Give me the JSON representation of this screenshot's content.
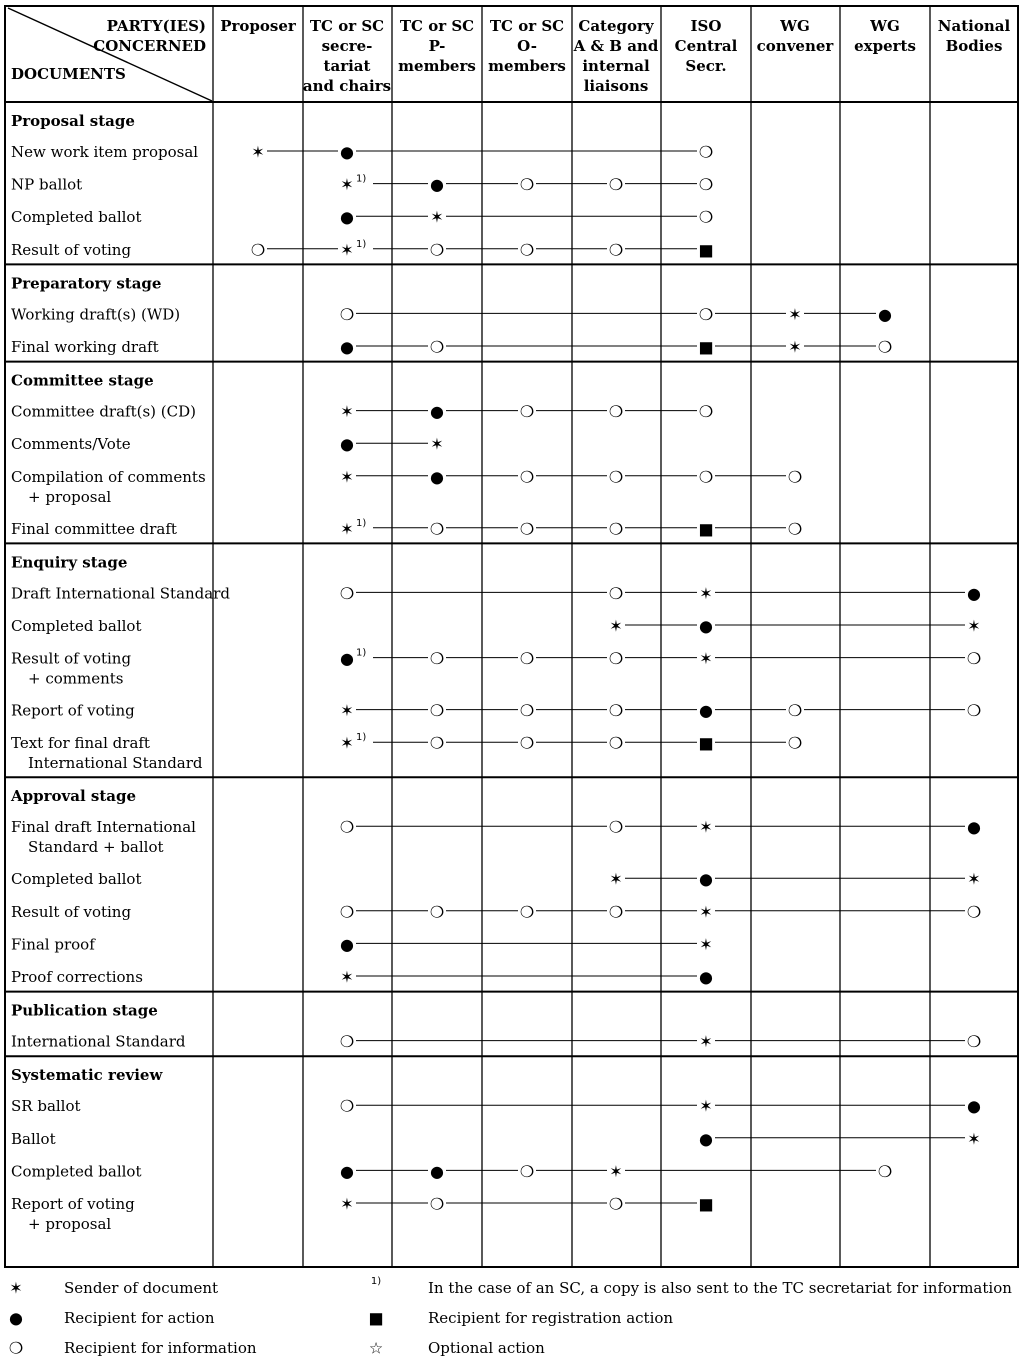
{
  "header": {
    "corner_top": [
      "PARTY(IES)",
      "CONCERNED"
    ],
    "corner_bottom": "DOCUMENTS",
    "columns": [
      [
        "Proposer"
      ],
      [
        "TC or SC",
        "secre-",
        "tariat",
        "and chairs"
      ],
      [
        "TC or SC",
        "P-",
        "members"
      ],
      [
        "TC or SC",
        "O-",
        "members"
      ],
      [
        "Category",
        "A & B and",
        "internal",
        "liaisons"
      ],
      [
        "ISO",
        "Central",
        "Secr."
      ],
      [
        "WG",
        "convener"
      ],
      [
        "WG",
        "experts"
      ],
      [
        "National",
        "Bodies"
      ]
    ]
  },
  "symbols": {
    "S": "✶",
    "A": "●",
    "I": "❍",
    "R": "■",
    "O": "☆"
  },
  "footnote_mark": "1)",
  "sections": [
    {
      "title": "Proposal stage",
      "rows": [
        {
          "label": [
            "New work item proposal"
          ],
          "marks": [
            "S",
            "A",
            "",
            "",
            "",
            "I",
            "",
            "",
            ""
          ],
          "fn": []
        },
        {
          "label": [
            "NP ballot"
          ],
          "marks": [
            "",
            "S",
            "A",
            "I",
            "I",
            "I",
            "",
            "",
            ""
          ],
          "fn": [
            1
          ]
        },
        {
          "label": [
            "Completed ballot"
          ],
          "marks": [
            "",
            "A",
            "S",
            "",
            "",
            "I",
            "",
            "",
            ""
          ],
          "fn": []
        },
        {
          "label": [
            "Result of voting"
          ],
          "marks": [
            "I",
            "S",
            "I",
            "I",
            "I",
            "R",
            "",
            "",
            ""
          ],
          "fn": [
            1
          ]
        }
      ]
    },
    {
      "title": "Preparatory stage",
      "rows": [
        {
          "label": [
            "Working draft(s) (WD)"
          ],
          "marks": [
            "",
            "I",
            "",
            "",
            "",
            "I",
            "S",
            "A",
            ""
          ],
          "fn": []
        },
        {
          "label": [
            "Final working draft"
          ],
          "marks": [
            "",
            "A",
            "I",
            "",
            "",
            "R",
            "S",
            "I",
            ""
          ],
          "fn": []
        }
      ]
    },
    {
      "title": "Committee stage",
      "rows": [
        {
          "label": [
            "Committee draft(s) (CD)"
          ],
          "marks": [
            "",
            "S",
            "A",
            "I",
            "I",
            "I",
            "",
            "",
            ""
          ],
          "fn": []
        },
        {
          "label": [
            "Comments/Vote"
          ],
          "marks": [
            "",
            "A",
            "S",
            "",
            "",
            "",
            "",
            "",
            ""
          ],
          "fn": []
        },
        {
          "label": [
            "Compilation of comments",
            "+ proposal"
          ],
          "marks": [
            "",
            "S",
            "A",
            "I",
            "I",
            "I",
            "I",
            "",
            ""
          ],
          "fn": []
        },
        {
          "label": [
            "Final committee draft"
          ],
          "marks": [
            "",
            "S",
            "I",
            "I",
            "I",
            "R",
            "I",
            "",
            ""
          ],
          "fn": [
            1
          ]
        }
      ]
    },
    {
      "title": "Enquiry stage",
      "rows": [
        {
          "label": [
            "Draft International Standard"
          ],
          "marks": [
            "",
            "I",
            "",
            "",
            "I",
            "S",
            "",
            "",
            "A"
          ],
          "fn": []
        },
        {
          "label": [
            "Completed ballot"
          ],
          "marks": [
            "",
            "",
            "",
            "",
            "S",
            "A",
            "",
            "",
            "S"
          ],
          "fn": []
        },
        {
          "label": [
            "Result of voting",
            "+ comments"
          ],
          "marks": [
            "",
            "A",
            "I",
            "I",
            "I",
            "S",
            "",
            "",
            "I"
          ],
          "fn": [
            1
          ]
        },
        {
          "label": [
            "Report of voting"
          ],
          "marks": [
            "",
            "S",
            "I",
            "I",
            "I",
            "A",
            "I",
            "",
            "I"
          ],
          "fn": []
        },
        {
          "label": [
            "Text for final draft",
            "International Standard"
          ],
          "marks": [
            "",
            "S",
            "I",
            "I",
            "I",
            "R",
            "I",
            "",
            ""
          ],
          "fn": [
            1
          ]
        }
      ]
    },
    {
      "title": "Approval stage",
      "rows": [
        {
          "label": [
            "Final draft International",
            "Standard + ballot"
          ],
          "marks": [
            "",
            "I",
            "",
            "",
            "I",
            "S",
            "",
            "",
            "A"
          ],
          "fn": []
        },
        {
          "label": [
            "Completed ballot"
          ],
          "marks": [
            "",
            "",
            "",
            "",
            "S",
            "A",
            "",
            "",
            "S"
          ],
          "fn": []
        },
        {
          "label": [
            "Result of voting"
          ],
          "marks": [
            "",
            "I",
            "I",
            "I",
            "I",
            "S",
            "",
            "",
            "I"
          ],
          "fn": []
        },
        {
          "label": [
            "Final proof"
          ],
          "marks": [
            "",
            "A",
            "",
            "",
            "",
            "S",
            "",
            "",
            ""
          ],
          "fn": []
        },
        {
          "label": [
            "Proof corrections"
          ],
          "marks": [
            "",
            "S",
            "",
            "",
            "",
            "A",
            "",
            "",
            ""
          ],
          "fn": []
        }
      ]
    },
    {
      "title": "Publication stage",
      "rows": [
        {
          "label": [
            "International Standard"
          ],
          "marks": [
            "",
            "I",
            "",
            "",
            "",
            "S",
            "",
            "",
            "I"
          ],
          "fn": []
        }
      ]
    },
    {
      "title": "Systematic review",
      "rows": [
        {
          "label": [
            "SR ballot"
          ],
          "marks": [
            "",
            "I",
            "",
            "",
            "",
            "S",
            "",
            "",
            "A"
          ],
          "fn": []
        },
        {
          "label": [
            "Ballot"
          ],
          "marks": [
            "",
            "",
            "",
            "",
            "",
            "A",
            "",
            "",
            "S"
          ],
          "fn": []
        },
        {
          "label": [
            "Completed ballot"
          ],
          "marks": [
            "",
            "A",
            "A",
            "I",
            "S",
            "",
            "",
            "I",
            ""
          ],
          "fn": []
        },
        {
          "label": [
            "Report of voting",
            "+ proposal"
          ],
          "marks": [
            "",
            "S",
            "I",
            "",
            "I",
            "R",
            "",
            "",
            ""
          ],
          "fn": []
        }
      ]
    }
  ],
  "legend": [
    {
      "symbol": "S",
      "text": "Sender of document"
    },
    {
      "symbol": "1)",
      "text": "In the case of an SC, a copy is also sent to the TC secretariat for information"
    },
    {
      "symbol": "A",
      "text": "Recipient for action"
    },
    {
      "symbol": "R",
      "text": "Recipient for registration action"
    },
    {
      "symbol": "I",
      "text": "Recipient for information"
    },
    {
      "symbol": "O",
      "text": "Optional action"
    }
  ]
}
